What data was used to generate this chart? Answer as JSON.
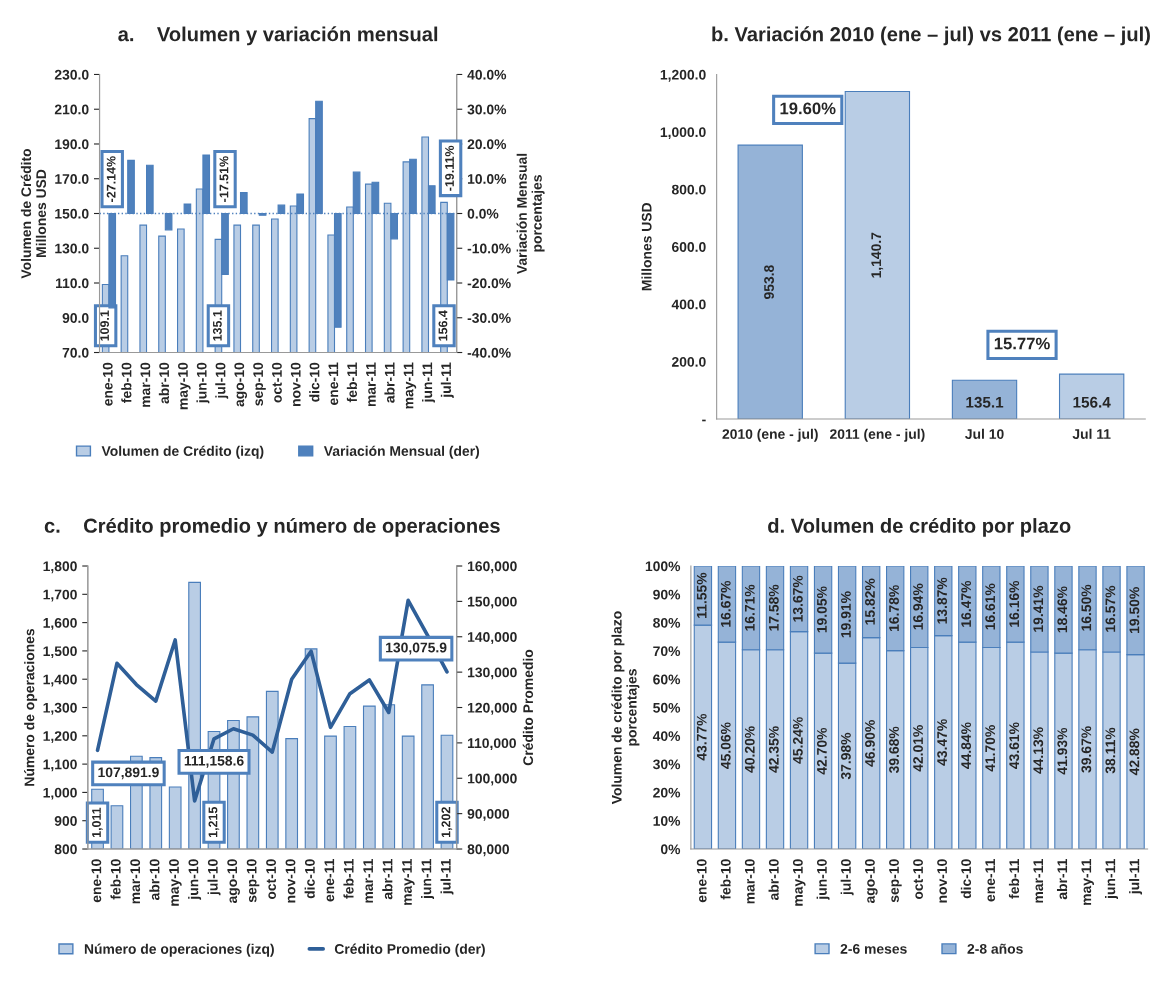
{
  "chart_data": [
    {
      "type": "bar",
      "title": "a.    Volumen y variación mensual",
      "categories": [
        "ene-10",
        "feb-10",
        "mar-10",
        "abr-10",
        "may-10",
        "jun-10",
        "jul-10",
        "ago-10",
        "sep-10",
        "oct-10",
        "nov-10",
        "dic-10",
        "ene-11",
        "feb-11",
        "mar-11",
        "abr-11",
        "may-11",
        "jun-11",
        "jul-11"
      ],
      "ylabel": "Volumen de Crédito\nMillones USD",
      "y2label": "Variación Mensual\nporcentajes",
      "series": [
        {
          "name": "Volumen de Crédito (izq)",
          "type": "bar",
          "axis": "y",
          "color": "#b9cde5",
          "values": [
            109.1,
            125.7,
            143.3,
            137.0,
            141.1,
            164.1,
            135.1,
            143.3,
            143.3,
            146.8,
            154.3,
            204.6,
            137.6,
            153.7,
            166.9,
            155.9,
            179.7,
            194.0,
            156.4
          ],
          "value_labels": [
            "109.1",
            null,
            null,
            null,
            null,
            null,
            "135.1",
            null,
            null,
            null,
            null,
            null,
            null,
            null,
            null,
            null,
            null,
            null,
            "156.4"
          ]
        },
        {
          "name": "Variación Mensual (der)",
          "type": "bar",
          "axis": "y2",
          "color": "#4f81bd",
          "values": [
            -27.14,
            15.3,
            13.9,
            -4.7,
            2.7,
            16.8,
            -17.51,
            6.0,
            -0.5,
            2.4,
            5.6,
            32.3,
            -32.7,
            11.9,
            9.0,
            -7.3,
            15.6,
            8.0,
            -19.11
          ],
          "value_labels": [
            "-27.14%",
            null,
            null,
            null,
            null,
            null,
            "-17.51%",
            null,
            null,
            null,
            null,
            null,
            null,
            null,
            null,
            null,
            null,
            null,
            "-19.11%"
          ]
        }
      ],
      "ylim": [
        70,
        230
      ],
      "yticks": [
        {
          "value": 70,
          "label": "70.0"
        },
        {
          "value": 90,
          "label": "90.0"
        },
        {
          "value": 110,
          "label": "110.0"
        },
        {
          "value": 130,
          "label": "130.0"
        },
        {
          "value": 150,
          "label": "150.0"
        },
        {
          "value": 170,
          "label": "170.0"
        },
        {
          "value": 190,
          "label": "190.0"
        },
        {
          "value": 210,
          "label": "210.0"
        },
        {
          "value": 230,
          "label": "230.0"
        }
      ],
      "y2lim": [
        -40,
        40
      ],
      "y2ticks": [
        {
          "value": -40,
          "label": "-40.0%"
        },
        {
          "value": -30,
          "label": "-30.0%"
        },
        {
          "value": -20,
          "label": "-20.0%"
        },
        {
          "value": -10,
          "label": "-10.0%"
        },
        {
          "value": 0,
          "label": "0.0%"
        },
        {
          "value": 10,
          "label": "10.0%"
        },
        {
          "value": 20,
          "label": "20.0%"
        },
        {
          "value": 30,
          "label": "30.0%"
        },
        {
          "value": 40,
          "label": "40.0%"
        }
      ],
      "ref_lines": [
        {
          "axis": "y2",
          "value": 0,
          "line_style": "dotted",
          "color": "#4f81bd"
        }
      ],
      "legend": "bottom"
    },
    {
      "type": "bar",
      "title": "b. Variación 2010 (ene – jul) vs 2011 (ene – jul)",
      "categories": [
        "2010 (ene - jul)",
        "2011 (ene - jul)",
        "Jul 10",
        "Jul 11"
      ],
      "ylabel": "Millones USD",
      "values": [
        953.8,
        1140.7,
        135.1,
        156.4
      ],
      "colors": [
        "#95b3d7",
        "#b9cde5",
        "#95b3d7",
        "#b9cde5"
      ],
      "value_labels": [
        "953.8",
        "1,140.7",
        "135.1",
        "156.4"
      ],
      "ylim": [
        0,
        1200
      ],
      "yticks": [
        {
          "value": 0,
          "label": "-"
        },
        {
          "value": 200,
          "label": "200.0"
        },
        {
          "value": 400,
          "label": "400.0"
        },
        {
          "value": 600,
          "label": "600.0"
        },
        {
          "value": 800,
          "label": "800.0"
        },
        {
          "value": 1000,
          "label": "1,000.0"
        },
        {
          "value": 1200,
          "label": "1,200.0"
        }
      ],
      "annotations": [
        "19.60%",
        "15.77%"
      ]
    },
    {
      "type": "bar",
      "title": "c.    Crédito promedio y número de operaciones",
      "categories": [
        "ene-10",
        "feb-10",
        "mar-10",
        "abr-10",
        "may-10",
        "jun-10",
        "jul-10",
        "ago-10",
        "sep-10",
        "oct-10",
        "nov-10",
        "dic-10",
        "ene-11",
        "feb-11",
        "mar-11",
        "abr-11",
        "may-11",
        "jun-11",
        "jul-11"
      ],
      "ylabel": "Número de operaciones",
      "y2label": "Crédito Promedio",
      "series": [
        {
          "name": "Número de operaciones (izq)",
          "type": "bar",
          "axis": "y",
          "color": "#b9cde5",
          "values": [
            1011,
            953,
            1128,
            1123,
            1019,
            1742,
            1215,
            1254,
            1267,
            1357,
            1190,
            1507,
            1199,
            1233,
            1305,
            1310,
            1199,
            1380,
            1202
          ],
          "value_labels": [
            "1,011",
            null,
            null,
            null,
            null,
            null,
            "1,215",
            null,
            null,
            null,
            null,
            null,
            null,
            null,
            null,
            null,
            null,
            null,
            "1,202"
          ]
        },
        {
          "name": "Crédito Promedio (der)",
          "type": "line",
          "axis": "y2",
          "color": "#2f5f98",
          "values": [
            107891.9,
            132500,
            126500,
            121800,
            139100,
            93600,
            111158.6,
            114000,
            112200,
            107400,
            128000,
            135900,
            114400,
            123900,
            127800,
            118600,
            150300,
            140400,
            130075.9
          ],
          "value_labels": [
            "107,891.9",
            null,
            null,
            null,
            null,
            null,
            "111,158.6",
            null,
            null,
            null,
            null,
            null,
            null,
            null,
            null,
            null,
            null,
            null,
            "130,075.9"
          ]
        }
      ],
      "ylim": [
        800,
        1800
      ],
      "yticks": [
        800,
        900,
        {
          "value": 1000,
          "label": "1,000"
        },
        {
          "value": 1100,
          "label": "1,100"
        },
        {
          "value": 1200,
          "label": "1,200"
        },
        {
          "value": 1300,
          "label": "1,300"
        },
        {
          "value": 1400,
          "label": "1,400"
        },
        {
          "value": 1500,
          "label": "1,500"
        },
        {
          "value": 1600,
          "label": "1,600"
        },
        {
          "value": 1700,
          "label": "1,700"
        },
        {
          "value": 1800,
          "label": "1,800"
        }
      ],
      "y2lim": [
        80000,
        160000
      ],
      "y2ticks": [
        {
          "value": 80000,
          "label": "80,000"
        },
        {
          "value": 90000,
          "label": "90,000"
        },
        {
          "value": 100000,
          "label": "100,000"
        },
        {
          "value": 110000,
          "label": "110,000"
        },
        {
          "value": 120000,
          "label": "120,000"
        },
        {
          "value": 130000,
          "label": "130,000"
        },
        {
          "value": 140000,
          "label": "140,000"
        },
        {
          "value": 150000,
          "label": "150,000"
        },
        {
          "value": 160000,
          "label": "160,000"
        }
      ],
      "legend": "bottom",
      "marker": "none",
      "line_style": "solid"
    },
    {
      "type": "bar",
      "title": "d. Volumen de crédito por plazo",
      "categories": [
        "ene-10",
        "feb-10",
        "mar-10",
        "abr-10",
        "may-10",
        "jun-10",
        "jul-10",
        "ago-10",
        "sep-10",
        "oct-10",
        "nov-10",
        "dic-10",
        "ene-11",
        "feb-11",
        "mar-11",
        "abr-11",
        "may-11",
        "jun-11",
        "jul-11"
      ],
      "ylabel": "Volumen de crédito por plazo\nporcentajes",
      "stacked": true,
      "series": [
        {
          "name": "2-6 meses",
          "color": "#b9cde5",
          "values": [
            79.1,
            73.1,
            70.4,
            70.4,
            76.8,
            69.2,
            65.7,
            74.7,
            70.1,
            71.2,
            75.4,
            73.1,
            71.2,
            73.1,
            69.6,
            69.2,
            70.4,
            69.6,
            68.7
          ]
        },
        {
          "name": "2-8 años",
          "color": "#95b3d7",
          "values": [
            20.9,
            26.9,
            29.6,
            29.6,
            23.2,
            30.8,
            34.3,
            25.3,
            29.9,
            28.8,
            24.6,
            26.9,
            28.8,
            26.9,
            30.4,
            30.8,
            29.6,
            30.4,
            31.3
          ]
        }
      ],
      "annotations": [
        "43.77%",
        "45.06%",
        "40.20%",
        "42.35%",
        "45.24%",
        "42.70%",
        "37.98%",
        "46.90%",
        "39.68%",
        "42.01%",
        "43.47%",
        "44.84%",
        "41.70%",
        "43.61%",
        "44.13%",
        "41.93%",
        "39.67%",
        "38.11%",
        "42.88%",
        "11.55%",
        "16.67%",
        "16.71%",
        "17.58%",
        "13.67%",
        "19.05%",
        "19.91%",
        "15.82%",
        "16.78%",
        "16.94%",
        "13.87%",
        "16.47%",
        "16.61%",
        "16.16%",
        "19.41%",
        "18.46%",
        "16.50%",
        "16.57%",
        "19.50%"
      ],
      "ylim": [
        0,
        100
      ],
      "yticks": [
        {
          "value": 0,
          "label": "0%"
        },
        {
          "value": 10,
          "label": "10%"
        },
        {
          "value": 20,
          "label": "20%"
        },
        {
          "value": 30,
          "label": "30%"
        },
        {
          "value": 40,
          "label": "40%"
        },
        {
          "value": 50,
          "label": "50%"
        },
        {
          "value": 60,
          "label": "60%"
        },
        {
          "value": 70,
          "label": "70%"
        },
        {
          "value": 80,
          "label": "80%"
        },
        {
          "value": 90,
          "label": "90%"
        },
        {
          "value": 100,
          "label": "100%"
        }
      ],
      "legend": "bottom"
    }
  ]
}
